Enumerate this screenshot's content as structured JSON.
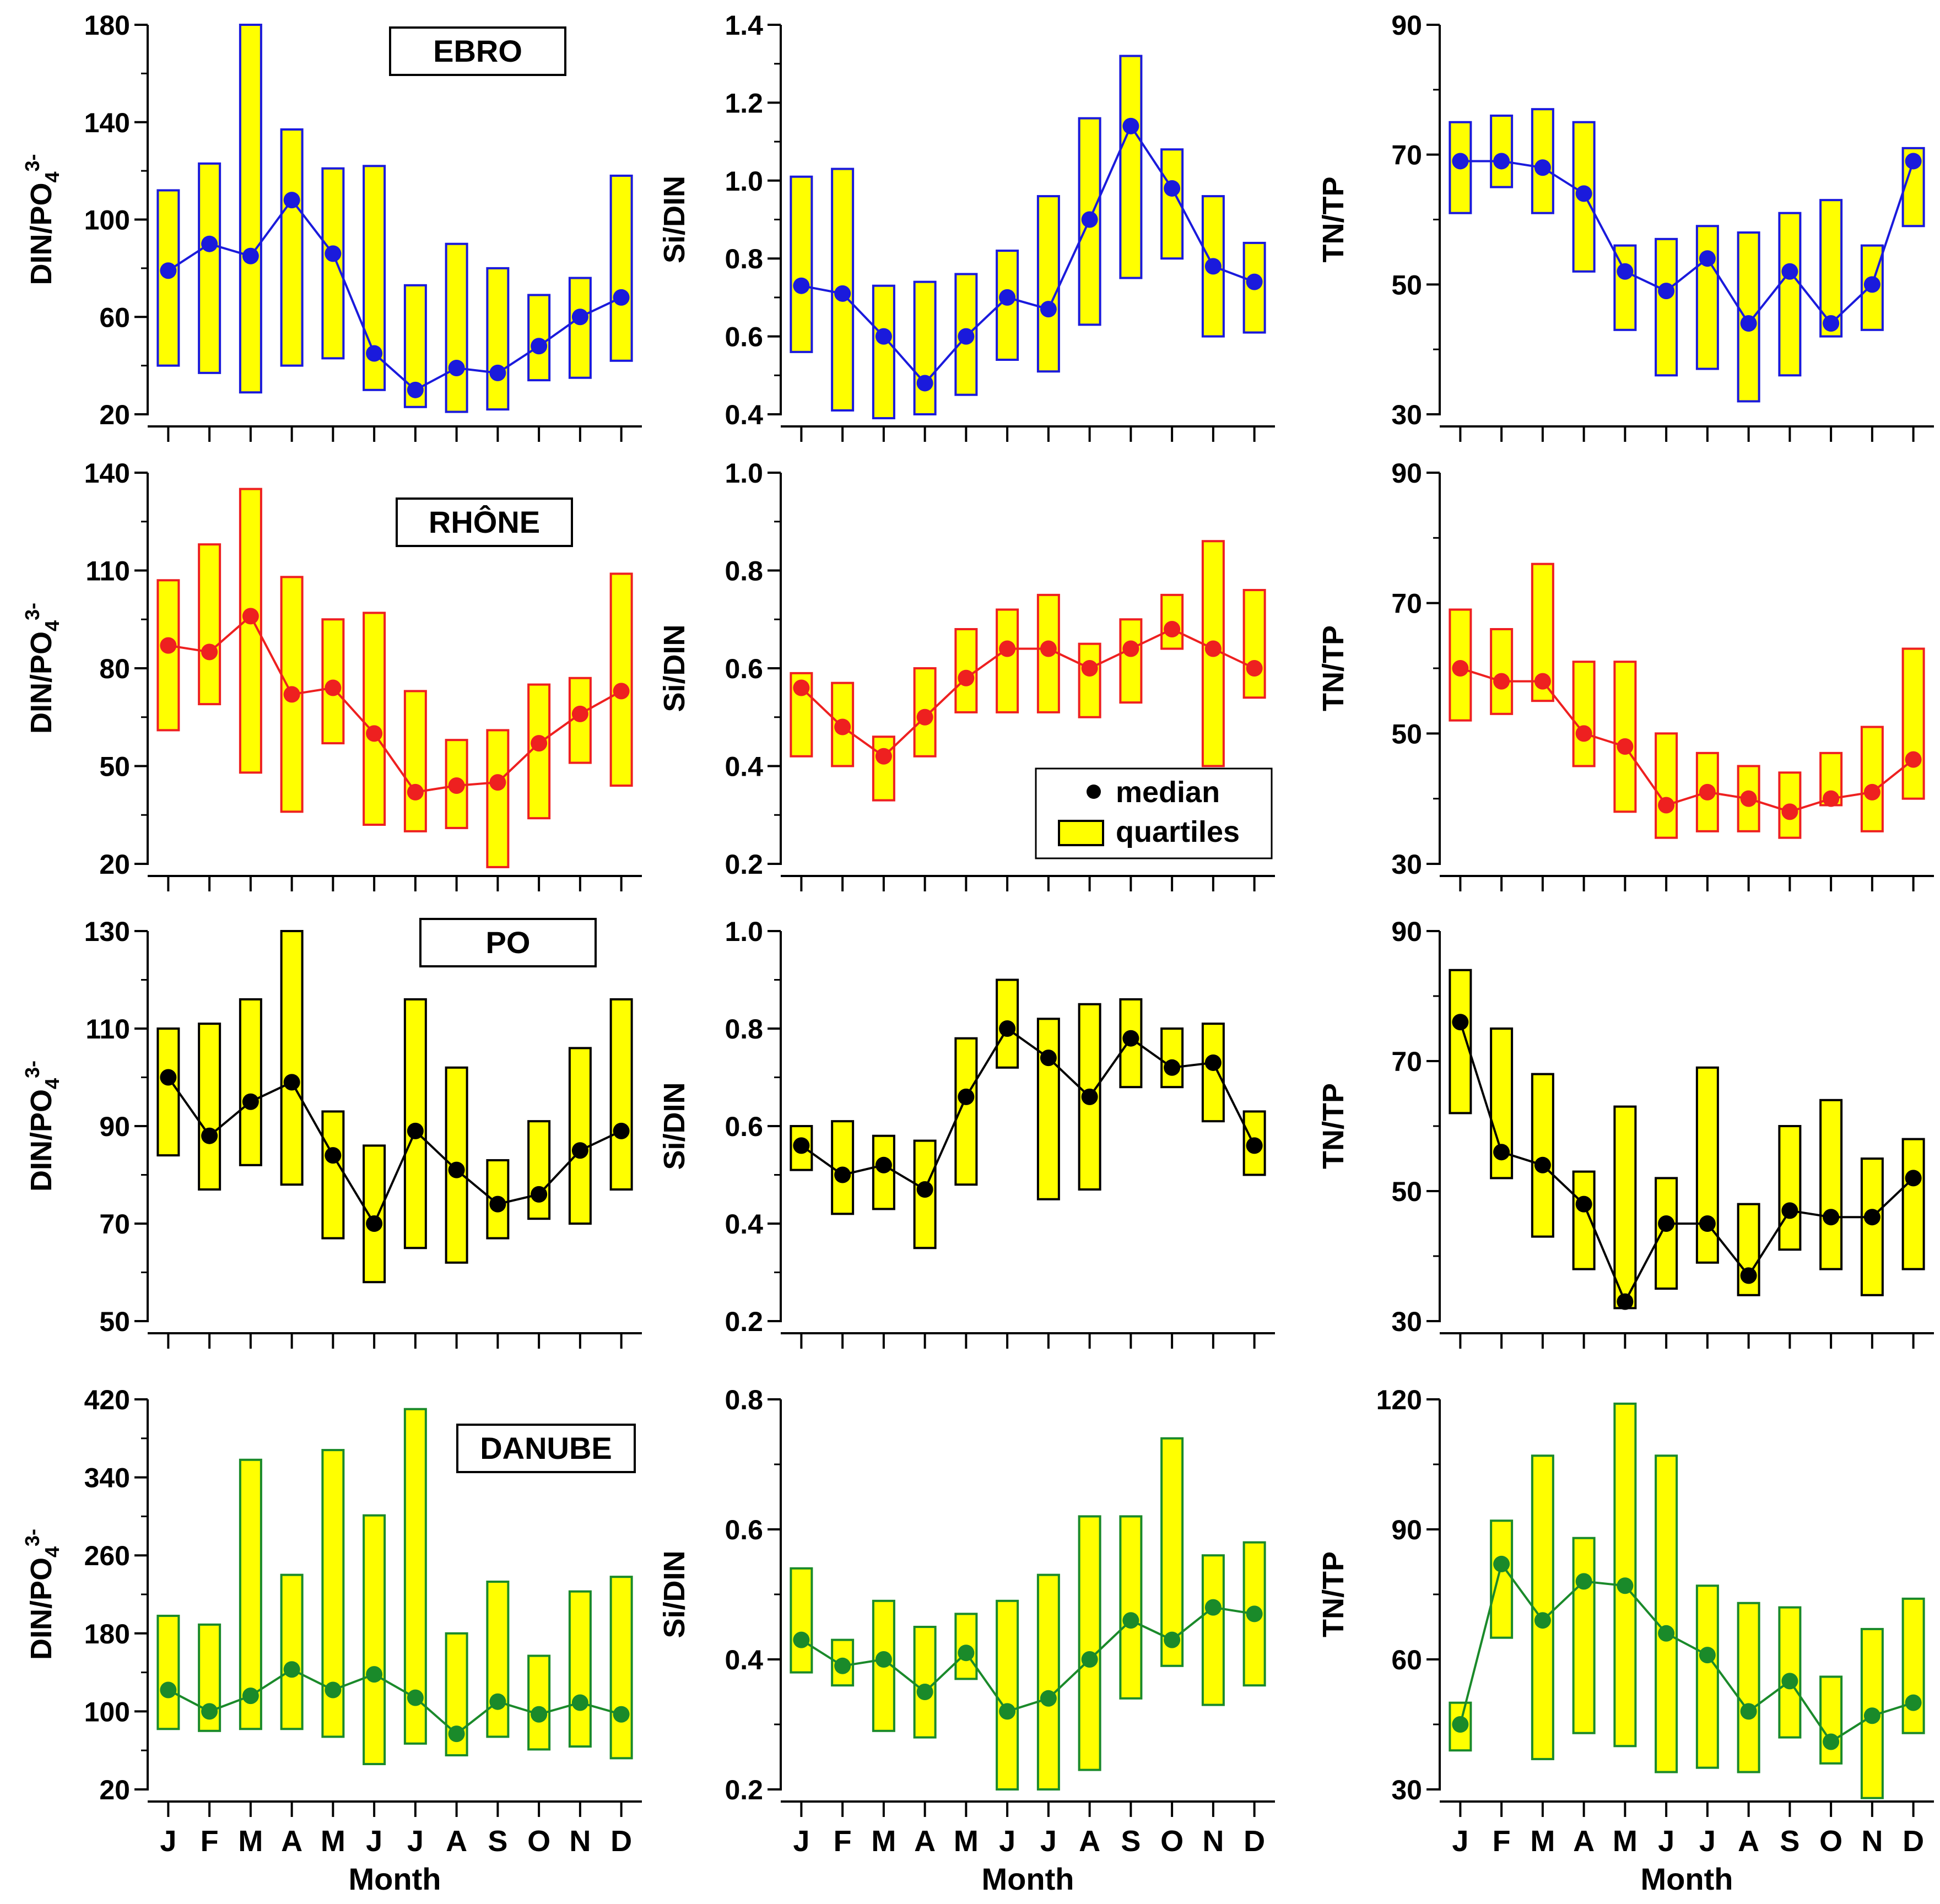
{
  "months": [
    "J",
    "F",
    "M",
    "A",
    "M",
    "J",
    "J",
    "A",
    "S",
    "O",
    "N",
    "D"
  ],
  "xlabel": "Month",
  "legend": {
    "median_label": "median",
    "quartiles_label": "quartiles"
  },
  "chart_data": [
    {
      "type": "box",
      "river": "EBRO",
      "color": "#1a1adc",
      "metric": "DIN/PO4",
      "ylabel": "DIN/PO",
      "ylabel_sub": "4",
      "ylabel_sup": "3-",
      "ylim": [
        20,
        180
      ],
      "yticks": [
        20,
        60,
        100,
        140,
        180
      ],
      "median": [
        79,
        90,
        85,
        108,
        86,
        45,
        30,
        39,
        37,
        48,
        60,
        68
      ],
      "q1": [
        40,
        37,
        29,
        40,
        43,
        30,
        23,
        21,
        22,
        34,
        35,
        42
      ],
      "q3": [
        112,
        123,
        180,
        137,
        121,
        122,
        73,
        90,
        80,
        69,
        76,
        118
      ]
    },
    {
      "type": "box",
      "river": "EBRO",
      "color": "#1a1adc",
      "metric": "Si/DIN",
      "ylabel": "Si/DIN",
      "ylim": [
        0.4,
        1.4
      ],
      "yticks": [
        0.4,
        0.6,
        0.8,
        1.0,
        1.2,
        1.4
      ],
      "median": [
        0.73,
        0.71,
        0.6,
        0.48,
        0.6,
        0.7,
        0.67,
        0.9,
        1.14,
        0.98,
        0.78,
        0.74
      ],
      "q1": [
        0.56,
        0.41,
        0.39,
        0.4,
        0.45,
        0.54,
        0.51,
        0.63,
        0.75,
        0.8,
        0.6,
        0.61
      ],
      "q3": [
        1.01,
        1.03,
        0.73,
        0.74,
        0.76,
        0.82,
        0.96,
        1.16,
        1.32,
        1.08,
        0.96,
        0.84
      ]
    },
    {
      "type": "box",
      "river": "EBRO",
      "color": "#1a1adc",
      "metric": "TN/TP",
      "ylabel": "TN/TP",
      "ylim": [
        30,
        90
      ],
      "yticks": [
        30,
        50,
        70,
        90
      ],
      "median": [
        69,
        69,
        68,
        64,
        52,
        49,
        54,
        44,
        52,
        44,
        50,
        69
      ],
      "q1": [
        61,
        65,
        61,
        52,
        43,
        36,
        37,
        32,
        36,
        42,
        43,
        59
      ],
      "q3": [
        75,
        76,
        77,
        75,
        56,
        57,
        59,
        58,
        61,
        63,
        56,
        71
      ]
    },
    {
      "type": "box",
      "river": "RHÔNE",
      "color": "#ee2020",
      "metric": "DIN/PO4",
      "ylabel": "DIN/PO",
      "ylabel_sub": "4",
      "ylabel_sup": "3-",
      "ylim": [
        20,
        140
      ],
      "yticks": [
        20,
        50,
        80,
        110,
        140
      ],
      "median": [
        87,
        85,
        96,
        72,
        74,
        60,
        42,
        44,
        45,
        57,
        66,
        73
      ],
      "q1": [
        61,
        69,
        48,
        36,
        57,
        32,
        30,
        31,
        19,
        34,
        51,
        44
      ],
      "q3": [
        107,
        118,
        135,
        108,
        95,
        97,
        73,
        58,
        61,
        75,
        77,
        109
      ]
    },
    {
      "type": "box",
      "river": "RHÔNE",
      "color": "#ee2020",
      "metric": "Si/DIN",
      "ylabel": "Si/DIN",
      "ylim": [
        0.2,
        1.0
      ],
      "yticks": [
        0.2,
        0.4,
        0.6,
        0.8,
        1.0
      ],
      "median": [
        0.56,
        0.48,
        0.42,
        0.5,
        0.58,
        0.64,
        0.64,
        0.6,
        0.64,
        0.68,
        0.64,
        0.6
      ],
      "q1": [
        0.42,
        0.4,
        0.33,
        0.42,
        0.51,
        0.51,
        0.51,
        0.5,
        0.53,
        0.64,
        0.4,
        0.54
      ],
      "q3": [
        0.59,
        0.57,
        0.46,
        0.6,
        0.68,
        0.72,
        0.75,
        0.65,
        0.7,
        0.75,
        0.86,
        0.76
      ]
    },
    {
      "type": "box",
      "river": "RHÔNE",
      "color": "#ee2020",
      "metric": "TN/TP",
      "ylabel": "TN/TP",
      "ylim": [
        30,
        90
      ],
      "yticks": [
        30,
        50,
        70,
        90
      ],
      "median": [
        60,
        58,
        58,
        50,
        48,
        39,
        41,
        40,
        38,
        40,
        41,
        46
      ],
      "q1": [
        52,
        53,
        55,
        45,
        38,
        34,
        35,
        35,
        34,
        39,
        35,
        40
      ],
      "q3": [
        69,
        66,
        76,
        61,
        61,
        50,
        47,
        45,
        44,
        47,
        51,
        63
      ]
    },
    {
      "type": "box",
      "river": "PO",
      "color": "#000000",
      "metric": "DIN/PO4",
      "ylabel": "DIN/PO",
      "ylabel_sub": "4",
      "ylabel_sup": "3-",
      "ylim": [
        50,
        130
      ],
      "yticks": [
        50,
        70,
        90,
        110,
        130
      ],
      "median": [
        100,
        88,
        95,
        99,
        84,
        70,
        89,
        81,
        74,
        76,
        85,
        89
      ],
      "q1": [
        84,
        77,
        82,
        78,
        67,
        58,
        65,
        62,
        67,
        71,
        70,
        77
      ],
      "q3": [
        110,
        111,
        116,
        130,
        93,
        86,
        116,
        102,
        83,
        91,
        106,
        116
      ]
    },
    {
      "type": "box",
      "river": "PO",
      "color": "#000000",
      "metric": "Si/DIN",
      "ylabel": "Si/DIN",
      "ylim": [
        0.2,
        1.0
      ],
      "yticks": [
        0.2,
        0.4,
        0.6,
        0.8,
        1.0
      ],
      "median": [
        0.56,
        0.5,
        0.52,
        0.47,
        0.66,
        0.8,
        0.74,
        0.66,
        0.78,
        0.72,
        0.73,
        0.56
      ],
      "q1": [
        0.51,
        0.42,
        0.43,
        0.35,
        0.48,
        0.72,
        0.45,
        0.47,
        0.68,
        0.68,
        0.61,
        0.5
      ],
      "q3": [
        0.6,
        0.61,
        0.58,
        0.57,
        0.78,
        0.9,
        0.82,
        0.85,
        0.86,
        0.8,
        0.81,
        0.63
      ]
    },
    {
      "type": "box",
      "river": "PO",
      "color": "#000000",
      "metric": "TN/TP",
      "ylabel": "TN/TP",
      "ylim": [
        30,
        90
      ],
      "yticks": [
        30,
        50,
        70,
        90
      ],
      "median": [
        76,
        56,
        54,
        48,
        33,
        45,
        45,
        37,
        47,
        46,
        46,
        52
      ],
      "q1": [
        62,
        52,
        43,
        38,
        32,
        35,
        39,
        34,
        41,
        38,
        34,
        38
      ],
      "q3": [
        84,
        75,
        68,
        53,
        63,
        52,
        69,
        48,
        60,
        64,
        55,
        58
      ]
    },
    {
      "type": "box",
      "river": "DANUBE",
      "color": "#1a8a2a",
      "metric": "DIN/PO4",
      "ylabel": "DIN/PO",
      "ylabel_sub": "4",
      "ylabel_sup": "3-",
      "ylim": [
        20,
        420
      ],
      "yticks": [
        20,
        100,
        180,
        260,
        340,
        420
      ],
      "median": [
        122,
        100,
        116,
        143,
        122,
        138,
        114,
        77,
        110,
        97,
        109,
        97
      ],
      "q1": [
        82,
        80,
        82,
        82,
        74,
        46,
        67,
        55,
        74,
        61,
        64,
        52
      ],
      "q3": [
        198,
        189,
        358,
        240,
        368,
        301,
        410,
        180,
        233,
        157,
        223,
        238
      ]
    },
    {
      "type": "box",
      "river": "DANUBE",
      "color": "#1a8a2a",
      "metric": "Si/DIN",
      "ylabel": "Si/DIN",
      "ylim": [
        0.2,
        0.8
      ],
      "yticks": [
        0.2,
        0.4,
        0.6,
        0.8
      ],
      "median": [
        0.43,
        0.39,
        0.4,
        0.35,
        0.41,
        0.32,
        0.34,
        0.4,
        0.46,
        0.43,
        0.48,
        0.47
      ],
      "q1": [
        0.38,
        0.36,
        0.29,
        0.28,
        0.37,
        0.2,
        0.2,
        0.23,
        0.34,
        0.39,
        0.33,
        0.36
      ],
      "q3": [
        0.54,
        0.43,
        0.49,
        0.45,
        0.47,
        0.49,
        0.53,
        0.62,
        0.62,
        0.74,
        0.56,
        0.58
      ]
    },
    {
      "type": "box",
      "river": "DANUBE",
      "color": "#1a8a2a",
      "metric": "TN/TP",
      "ylabel": "TN/TP",
      "ylim": [
        30,
        120
      ],
      "yticks": [
        30,
        60,
        90,
        120
      ],
      "median": [
        45,
        82,
        69,
        78,
        77,
        66,
        61,
        48,
        55,
        41,
        47,
        50
      ],
      "q1": [
        39,
        65,
        37,
        43,
        40,
        34,
        35,
        34,
        42,
        36,
        28,
        43
      ],
      "q3": [
        50,
        92,
        107,
        88,
        119,
        107,
        77,
        73,
        72,
        56,
        67,
        74
      ]
    }
  ]
}
